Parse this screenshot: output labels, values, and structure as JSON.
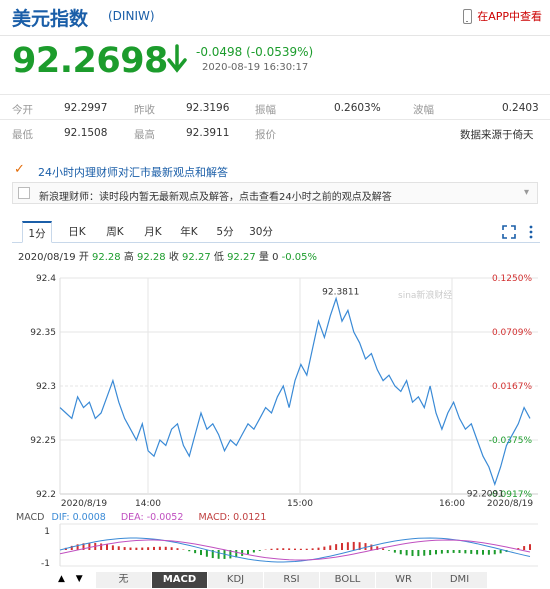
{
  "header": {
    "title": "美元指数",
    "code": "(DINIW)",
    "app_link": "在APP中查看"
  },
  "quote": {
    "price": "92.2698",
    "change": "-0.0498 (-0.0539%)",
    "timestamp": "2020-08-19 16:30:17",
    "direction": "down",
    "color": "#1c9c2c"
  },
  "stats": {
    "row1": [
      {
        "label": "今开",
        "value": "92.2997"
      },
      {
        "label": "昨收",
        "value": "92.3196"
      },
      {
        "label": "振幅",
        "value": "0.2603%"
      },
      {
        "label": "波幅",
        "value": "0.2403"
      }
    ],
    "row2": [
      {
        "label": "最低",
        "value": "92.1508"
      },
      {
        "label": "最高",
        "value": "92.3911"
      },
      {
        "label": "报价",
        "value": "数据来源于倚天"
      }
    ]
  },
  "announcement": {
    "title": "24小时内理财师对汇市最新观点和解答",
    "note": "新浪理财师：读时段内暂无最新观点及解答，点击查看24小时之前的观点及解答"
  },
  "tabs": [
    "1分",
    "日K",
    "周K",
    "月K",
    "年K",
    "5分",
    "30分"
  ],
  "active_tab": "1分",
  "info_bar": {
    "date": "2020/08/19",
    "open_label": "开",
    "open": "92.28",
    "high_label": "高",
    "high": "92.28",
    "close_label": "收",
    "close": "92.27",
    "low_label": "低",
    "low": "92.27",
    "vol_label": "量",
    "vol": "0",
    "pct": "-0.05%"
  },
  "watermark": "sina新浪财经",
  "macd": {
    "label": "MACD",
    "dif": "DIF: 0.0008",
    "dea": "DEA: -0.0052",
    "macd": "MACD: 0.0121",
    "ticks": [
      "1",
      "-1"
    ]
  },
  "indicator_tabs": [
    "无",
    "MACD",
    "KDJ",
    "RSI",
    "BOLL",
    "WR",
    "DMI"
  ],
  "active_indicator": "MACD",
  "chart_data": {
    "type": "line",
    "title": "",
    "y_ticks": [
      "92.4",
      "92.35",
      "92.3",
      "92.25",
      "92.2"
    ],
    "right_ticks": [
      "0.1250%",
      "0.0709%",
      "0.0167%",
      "-0.0375%",
      "-0.0917%"
    ],
    "x_ticks": [
      "2020/8/19",
      "14:00",
      "15:00",
      "16:00",
      "2020/8/19"
    ],
    "ylim": [
      92.2,
      92.4
    ],
    "high_label": "92.3811",
    "low_label": "92.2091",
    "values": [
      92.28,
      92.275,
      92.27,
      92.29,
      92.28,
      92.285,
      92.27,
      92.275,
      92.29,
      92.305,
      92.285,
      92.27,
      92.26,
      92.25,
      92.265,
      92.24,
      92.235,
      92.25,
      92.245,
      92.26,
      92.265,
      92.245,
      92.235,
      92.255,
      92.275,
      92.26,
      92.265,
      92.255,
      92.24,
      92.25,
      92.245,
      92.255,
      92.265,
      92.26,
      92.27,
      92.28,
      92.275,
      92.29,
      92.3,
      92.28,
      92.305,
      92.32,
      92.31,
      92.335,
      92.36,
      92.345,
      92.365,
      92.381,
      92.36,
      92.37,
      92.35,
      92.34,
      92.325,
      92.33,
      92.315,
      92.305,
      92.31,
      92.3,
      92.295,
      92.305,
      92.285,
      92.29,
      92.28,
      92.3,
      92.275,
      92.26,
      92.275,
      92.285,
      92.27,
      92.26,
      92.265,
      92.25,
      92.235,
      92.225,
      92.209,
      92.225,
      92.245,
      92.255,
      92.265,
      92.28,
      92.27
    ]
  }
}
